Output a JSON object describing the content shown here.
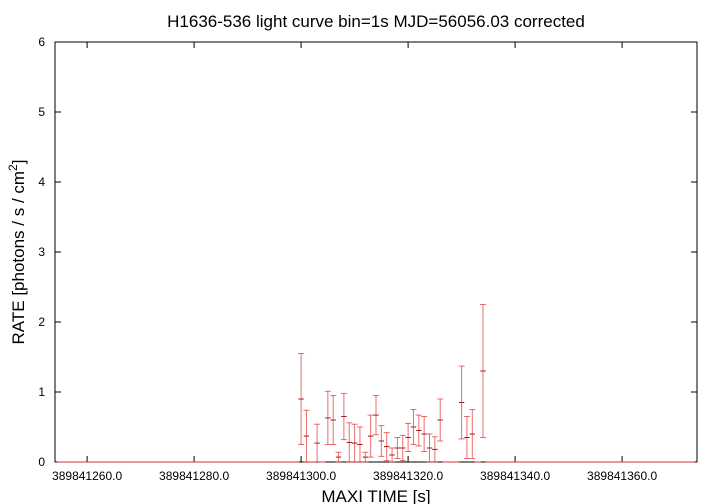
{
  "chart_data": {
    "type": "errorbar",
    "title": "H1636-536 light curve bin=1s MJD=56056.03 corrected",
    "x_label": "MAXI TIME [s]",
    "y_label": [
      "RATE [photons / s / cm",
      "2",
      "]"
    ],
    "color": "#e03030",
    "xlim": [
      389841254,
      389841374
    ],
    "ylim": [
      0,
      6
    ],
    "yticks": [
      0,
      1,
      2,
      3,
      4,
      5,
      6
    ],
    "xticks": [
      {
        "value": 389841260,
        "label": "389841260.0"
      },
      {
        "value": 389841280,
        "label": "389841280.0"
      },
      {
        "value": 389841300,
        "label": "389841300.0"
      },
      {
        "value": 389841320,
        "label": "389841320.0"
      },
      {
        "value": 389841340,
        "label": "389841340.0"
      },
      {
        "value": 389841360,
        "label": "389841360.0"
      }
    ],
    "x": [
      389841255,
      389841256,
      389841257,
      389841258,
      389841259,
      389841260,
      389841261,
      389841262,
      389841263,
      389841264,
      389841265,
      389841266,
      389841267,
      389841268,
      389841269,
      389841270,
      389841271,
      389841272,
      389841273,
      389841274,
      389841275,
      389841276,
      389841277,
      389841278,
      389841279,
      389841280,
      389841281,
      389841282,
      389841283,
      389841284,
      389841285,
      389841286,
      389841287,
      389841288,
      389841289,
      389841290,
      389841291,
      389841292,
      389841293,
      389841294,
      389841295,
      389841296,
      389841297,
      389841298,
      389841299,
      389841300,
      389841301,
      389841302,
      389841303,
      389841304,
      389841305,
      389841306,
      389841307,
      389841308,
      389841309,
      389841310,
      389841311,
      389841312,
      389841313,
      389841314,
      389841315,
      389841316,
      389841317,
      389841318,
      389841319,
      389841320,
      389841321,
      389841322,
      389841323,
      389841324,
      389841325,
      389841326,
      389841327,
      389841328,
      389841329,
      389841330,
      389841331,
      389841332,
      389841333,
      389841334,
      389841335,
      389841336,
      389841337,
      389841338,
      389841339,
      389841340,
      389841341,
      389841342,
      389841343,
      389841344,
      389841345,
      389841346,
      389841347,
      389841348,
      389841349,
      389841350,
      389841351,
      389841352,
      389841353,
      389841354,
      389841355,
      389841356,
      389841357,
      389841358,
      389841359,
      389841360,
      389841361,
      389841362,
      389841363,
      389841364,
      389841365,
      389841366,
      389841367,
      389841368,
      389841369,
      389841370,
      389841371,
      389841372,
      389841373
    ],
    "values": [
      0,
      0,
      0,
      0,
      0,
      0,
      0,
      0,
      0,
      0,
      0,
      0,
      0,
      0,
      0,
      0,
      0,
      0,
      0,
      0,
      0,
      0,
      0,
      0,
      0,
      0,
      0,
      0,
      0,
      0,
      0,
      0,
      0,
      0,
      0,
      0,
      0,
      0,
      0,
      0,
      0,
      0,
      0,
      0,
      0,
      0.9,
      0.37,
      0,
      0.27,
      0,
      0.63,
      0.6,
      0.07,
      0.65,
      0.28,
      0.27,
      0.25,
      0.07,
      0.37,
      0.67,
      0.3,
      0.22,
      0.1,
      0.2,
      0.2,
      0.35,
      0.5,
      0.45,
      0.4,
      0.2,
      0.18,
      0.6,
      0,
      0,
      0,
      0.85,
      0.35,
      0.4,
      0,
      1.3,
      0,
      0,
      0,
      0,
      0,
      0,
      0,
      0,
      0,
      0,
      0,
      0,
      0,
      0,
      0,
      0,
      0,
      0,
      0,
      0,
      0,
      0,
      0,
      0,
      0,
      0,
      0,
      0,
      0,
      0,
      0,
      0,
      0,
      0,
      0,
      0,
      0,
      0,
      0
    ],
    "errors": [
      0,
      0,
      0,
      0,
      0,
      0,
      0,
      0,
      0,
      0,
      0,
      0,
      0,
      0,
      0,
      0,
      0,
      0,
      0,
      0,
      0,
      0,
      0,
      0,
      0,
      0,
      0,
      0,
      0,
      0,
      0,
      0,
      0,
      0,
      0,
      0,
      0,
      0,
      0,
      0,
      0,
      0,
      0,
      0,
      0,
      0.65,
      0.37,
      0,
      0.27,
      0,
      0.38,
      0.35,
      0.07,
      0.33,
      0.28,
      0.27,
      0.25,
      0.07,
      0.3,
      0.28,
      0.22,
      0.2,
      0.1,
      0.15,
      0.18,
      0.2,
      0.25,
      0.22,
      0.25,
      0.2,
      0.18,
      0.3,
      0,
      0,
      0,
      0.52,
      0.3,
      0.35,
      0,
      0.95,
      0,
      0,
      0,
      0,
      0,
      0,
      0,
      0,
      0,
      0,
      0,
      0,
      0,
      0,
      0,
      0,
      0,
      0,
      0,
      0,
      0,
      0,
      0,
      0,
      0,
      0,
      0,
      0,
      0,
      0,
      0,
      0,
      0,
      0,
      0,
      0,
      0,
      0,
      0
    ]
  }
}
